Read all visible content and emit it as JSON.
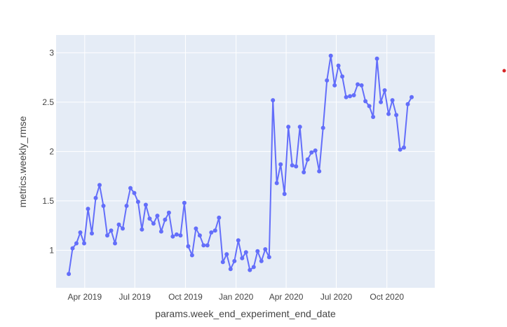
{
  "chart_data": {
    "type": "line",
    "mode": "lines+markers",
    "xlabel": "params.week_end_experiment_end_date",
    "ylabel": "metrics.weekly_rmse",
    "x_range": [
      "2019-02-08",
      "2020-12-27"
    ],
    "ylim": [
      0.62,
      3.18
    ],
    "x_ticks": [
      {
        "date": "2019-04-01",
        "label": "Apr 2019"
      },
      {
        "date": "2019-07-01",
        "label": "Jul 2019"
      },
      {
        "date": "2019-10-01",
        "label": "Oct 2019"
      },
      {
        "date": "2020-01-01",
        "label": "Jan 2020"
      },
      {
        "date": "2020-04-01",
        "label": "Apr 2020"
      },
      {
        "date": "2020-07-01",
        "label": "Jul 2020"
      },
      {
        "date": "2020-10-01",
        "label": "Oct 2020"
      }
    ],
    "y_ticks": [
      {
        "value": 1,
        "label": "1"
      },
      {
        "value": 1.5,
        "label": "1.5"
      },
      {
        "value": 2,
        "label": "2"
      },
      {
        "value": 2.5,
        "label": "2.5"
      },
      {
        "value": 3,
        "label": "3"
      }
    ],
    "grid": true,
    "legend": "none",
    "colors": {
      "series": "#636efa",
      "plot_bg": "#e5ecf6",
      "grid": "#ffffff",
      "legend_dot": "#d62728"
    },
    "series": [
      {
        "x": [
          "2019-03-03",
          "2019-03-10",
          "2019-03-17",
          "2019-03-24",
          "2019-03-31",
          "2019-04-07",
          "2019-04-14",
          "2019-04-21",
          "2019-04-28",
          "2019-05-05",
          "2019-05-12",
          "2019-05-19",
          "2019-05-26",
          "2019-06-02",
          "2019-06-09",
          "2019-06-16",
          "2019-06-23",
          "2019-06-30",
          "2019-07-07",
          "2019-07-14",
          "2019-07-21",
          "2019-07-28",
          "2019-08-04",
          "2019-08-11",
          "2019-08-18",
          "2019-08-25",
          "2019-09-01",
          "2019-09-08",
          "2019-09-15",
          "2019-09-22",
          "2019-09-29",
          "2019-10-06",
          "2019-10-13",
          "2019-10-20",
          "2019-10-27",
          "2019-11-03",
          "2019-11-10",
          "2019-11-17",
          "2019-11-24",
          "2019-12-01",
          "2019-12-08",
          "2019-12-15",
          "2019-12-22",
          "2019-12-29",
          "2020-01-05",
          "2020-01-12",
          "2020-01-19",
          "2020-01-26",
          "2020-02-02",
          "2020-02-09",
          "2020-02-16",
          "2020-02-23",
          "2020-03-01",
          "2020-03-08",
          "2020-03-15",
          "2020-03-22",
          "2020-03-29",
          "2020-04-05",
          "2020-04-12",
          "2020-04-19",
          "2020-04-26",
          "2020-05-03",
          "2020-05-10",
          "2020-05-17",
          "2020-05-24",
          "2020-05-31",
          "2020-06-07",
          "2020-06-14",
          "2020-06-21",
          "2020-06-28",
          "2020-07-05",
          "2020-07-12",
          "2020-07-19",
          "2020-07-26",
          "2020-08-02",
          "2020-08-09",
          "2020-08-16",
          "2020-08-23",
          "2020-08-30",
          "2020-09-06",
          "2020-09-13",
          "2020-09-20",
          "2020-09-27",
          "2020-10-04",
          "2020-10-11",
          "2020-10-18",
          "2020-10-25",
          "2020-11-01",
          "2020-11-08",
          "2020-11-15"
        ],
        "y": [
          0.76,
          1.02,
          1.07,
          1.18,
          1.07,
          1.42,
          1.17,
          1.53,
          1.66,
          1.45,
          1.15,
          1.2,
          1.07,
          1.26,
          1.22,
          1.45,
          1.63,
          1.58,
          1.49,
          1.21,
          1.46,
          1.32,
          1.27,
          1.35,
          1.19,
          1.31,
          1.38,
          1.14,
          1.16,
          1.15,
          1.48,
          1.04,
          0.95,
          1.22,
          1.15,
          1.05,
          1.05,
          1.18,
          1.2,
          1.33,
          0.88,
          0.96,
          0.81,
          0.89,
          1.1,
          0.92,
          0.98,
          0.8,
          0.83,
          0.99,
          0.89,
          1.01,
          0.93,
          2.52,
          1.68,
          1.87,
          1.57,
          2.25,
          1.86,
          1.85,
          2.25,
          1.79,
          1.92,
          1.99,
          2.01,
          1.8,
          2.24,
          2.72,
          2.97,
          2.67,
          2.87,
          2.76,
          2.55,
          2.56,
          2.57,
          2.68,
          2.67,
          2.51,
          2.46,
          2.35,
          2.94,
          2.5,
          2.62,
          2.38,
          2.52,
          2.37,
          2.02,
          2.04,
          2.48,
          2.55
        ]
      }
    ]
  }
}
